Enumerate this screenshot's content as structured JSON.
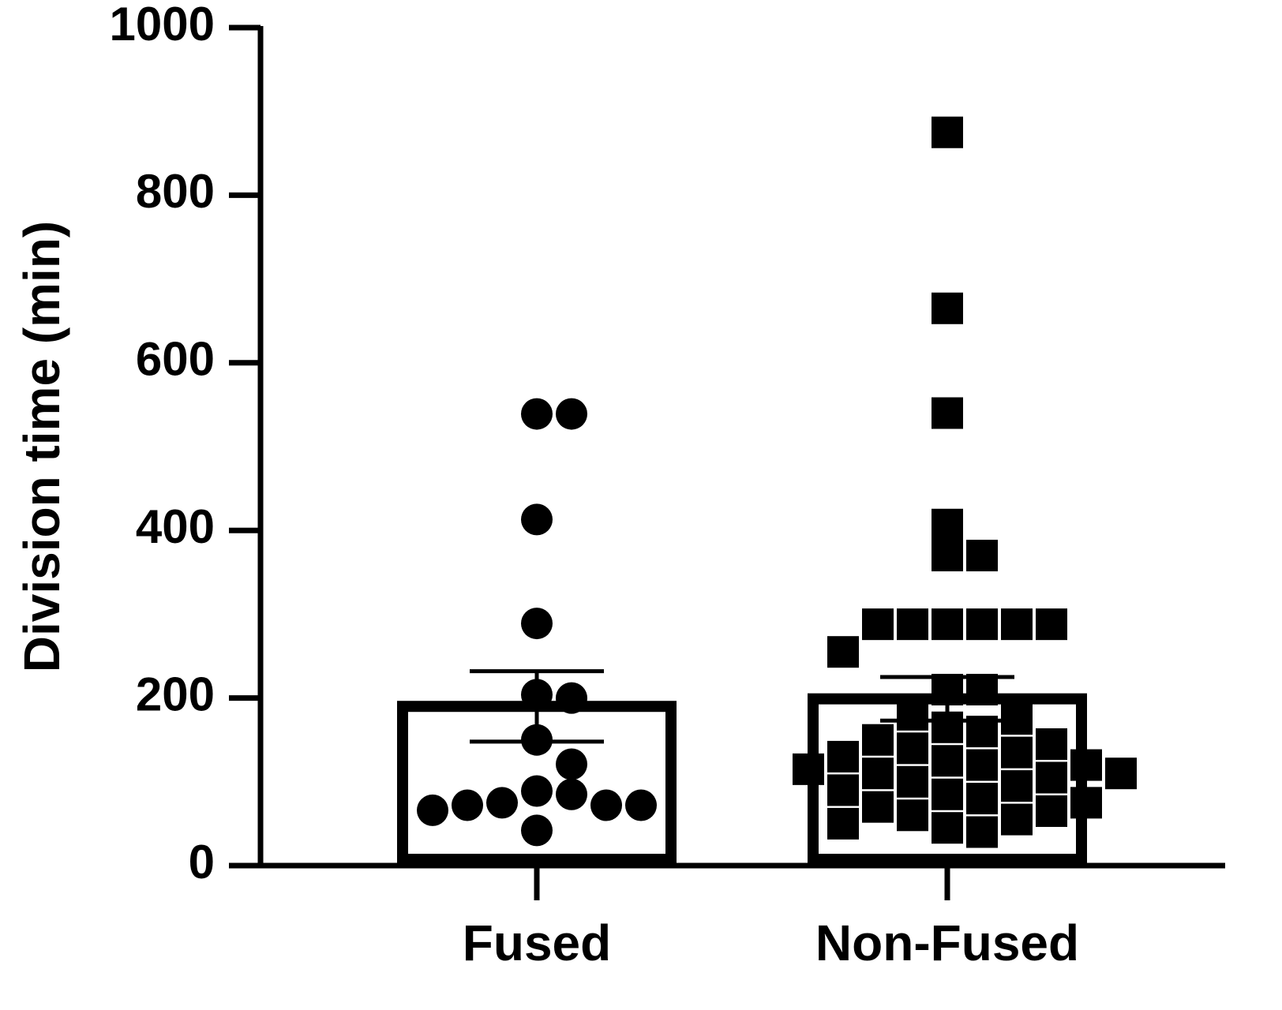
{
  "chart_data": {
    "type": "bar",
    "ylabel": "Division time (min)",
    "categories": [
      "Fused",
      "Non-Fused"
    ],
    "values": [
      190,
      199
    ],
    "errors": [
      42,
      26
    ],
    "markers": [
      "circle",
      "square"
    ],
    "color": "#000000",
    "points": [
      [
        539,
        539,
        413,
        289,
        200,
        204,
        150,
        121,
        75,
        72,
        85,
        89,
        66,
        72,
        72,
        42
      ],
      [
        875,
        665,
        540,
        407,
        370,
        370,
        288,
        288,
        288,
        288,
        288,
        288,
        255,
        210,
        210,
        180,
        175,
        165,
        160,
        150,
        145,
        140,
        135,
        130,
        125,
        120,
        120,
        115,
        110,
        110,
        105,
        100,
        95,
        90,
        85,
        80,
        75,
        70,
        65,
        60,
        55,
        50,
        45,
        40
      ]
    ],
    "ylim": [
      0,
      1000
    ],
    "yticks": [
      0,
      200,
      400,
      600,
      800,
      1000
    ]
  }
}
